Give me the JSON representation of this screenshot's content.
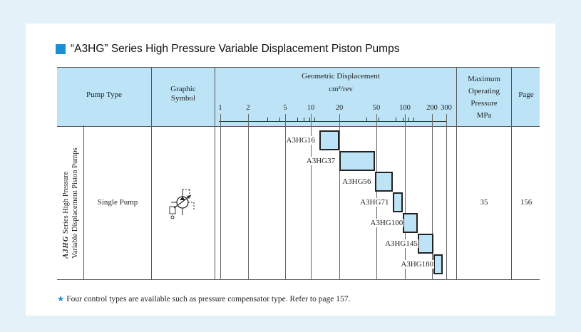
{
  "title": "“A3HG” Series High Pressure Variable Displacement Piston Pumps",
  "colors": {
    "accent": "#1a8fd6",
    "header_bg": "#bde4f6",
    "page_bg": "#e3f1f8"
  },
  "header": {
    "pump_type": "Pump Type",
    "graphic_symbol_1": "Graphic",
    "graphic_symbol_2": "Symbol",
    "displacement_1": "Geometric Displacement",
    "displacement_2": "cm³/rev",
    "pressure_1": "Maximum",
    "pressure_2": "Operating",
    "pressure_3": "Pressure",
    "pressure_4": "MPa",
    "page": "Page"
  },
  "scale_ticks": [
    "1",
    "2",
    "5",
    "10",
    "20",
    "50",
    "100",
    "200",
    "300"
  ],
  "series_label": {
    "logo_text": "A3HG",
    "line1": "Series High Pressure",
    "line2": "Variable Displacement Piston Pumps"
  },
  "row": {
    "pump_type": "Single Pump",
    "pressure": "35",
    "page": "156"
  },
  "models": [
    {
      "name": "A3HG16",
      "min": 10,
      "max": 16
    },
    {
      "name": "A3HG37",
      "min": 16,
      "max": 37
    },
    {
      "name": "A3HG56",
      "min": 37,
      "max": 56
    },
    {
      "name": "A3HG71",
      "min": 56,
      "max": 71
    },
    {
      "name": "A3HG100",
      "min": 71,
      "max": 100
    },
    {
      "name": "A3HG145",
      "min": 100,
      "max": 145
    },
    {
      "name": "A3HG180",
      "min": 145,
      "max": 180
    }
  ],
  "footnote": {
    "star": "★",
    "text": "Four control types are available such as pressure compensator type.  Refer to page 157."
  }
}
